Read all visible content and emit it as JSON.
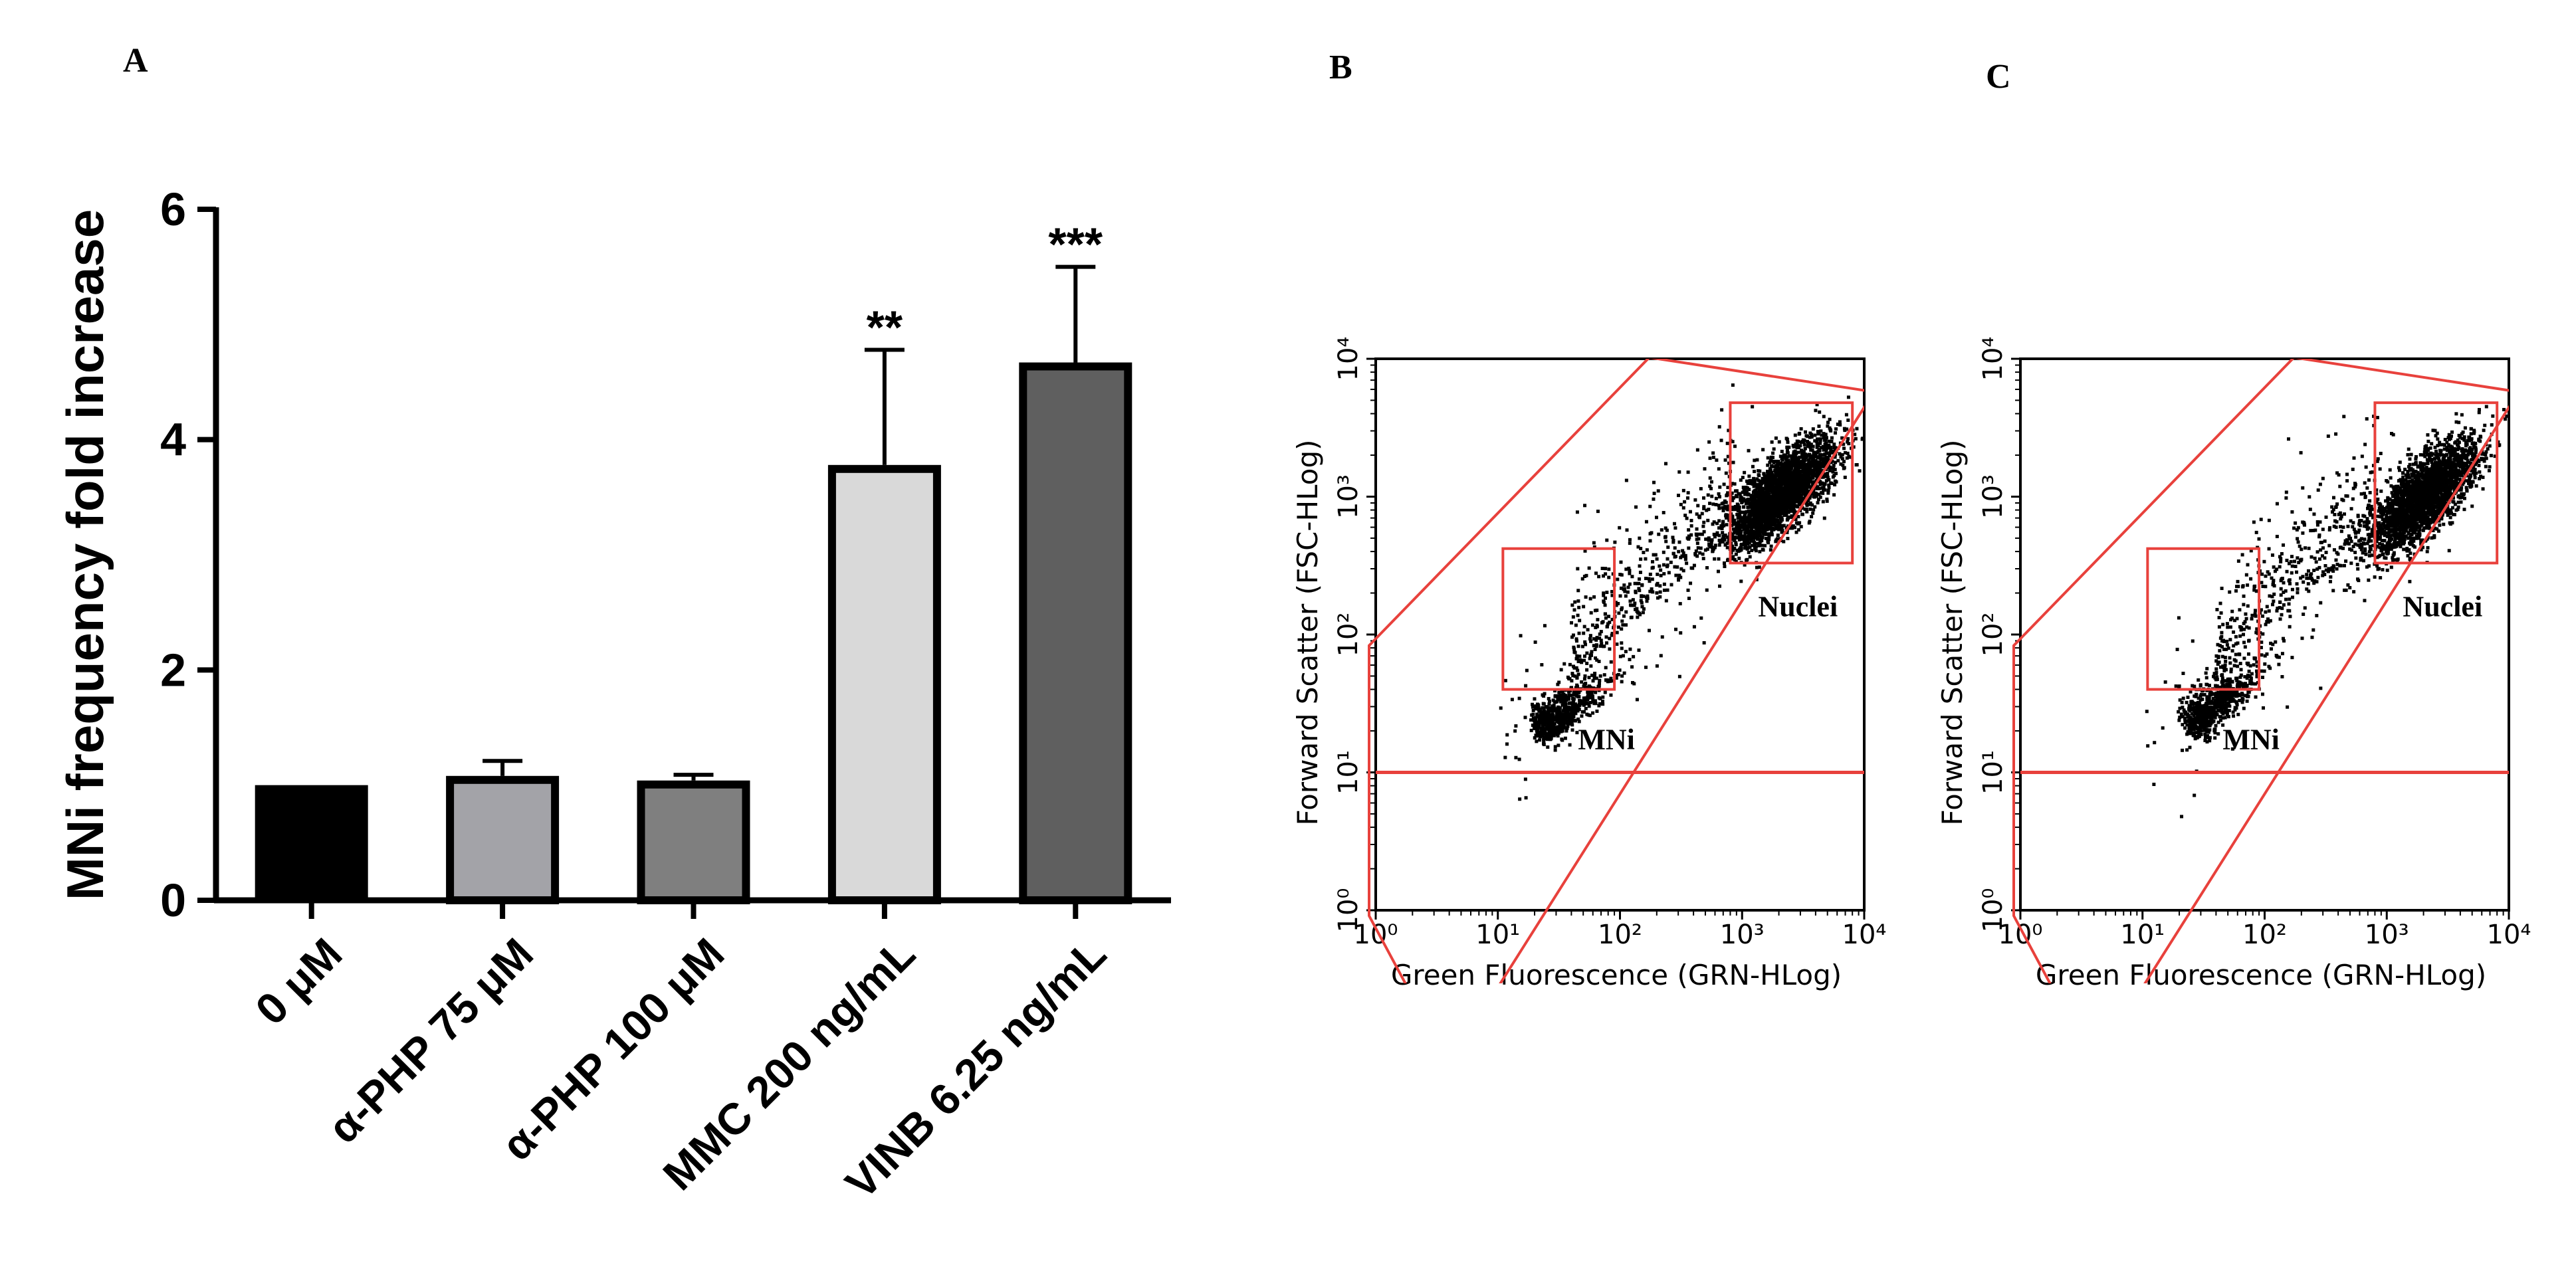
{
  "panels": {
    "A": "A",
    "B": "B",
    "C": "C"
  },
  "chart_data": [
    {
      "type": "bar",
      "panel": "A",
      "title": "",
      "xlabel": "",
      "ylabel": "MNi frequency fold increase",
      "ylim": [
        0,
        6
      ],
      "yticks": [
        "0",
        "2",
        "4",
        "6"
      ],
      "categories": [
        "0 μM",
        "α-PHP 75 μM",
        "α-PHP 100 μM",
        "MMC 200 ng/mL",
        "VINB 6.25 ng/mL"
      ],
      "values": [
        1.0,
        1.08,
        1.04,
        3.78,
        4.67
      ],
      "errors": [
        0.0,
        0.13,
        0.05,
        1.0,
        0.83
      ],
      "significance": [
        "",
        "",
        "",
        "**",
        "***"
      ],
      "colors": [
        "#000000",
        "#a3a3a8",
        "#7f7f7f",
        "#d9d9d9",
        "#5f5f5f"
      ]
    },
    {
      "type": "scatter",
      "panel": "B",
      "xlabel": "Green Fluorescence (GRN-HLog)",
      "ylabel": "Forward Scatter (FSC-HLog)",
      "x_scale": "log",
      "y_scale": "log",
      "xlim": [
        1,
        10000
      ],
      "ylim": [
        1,
        10000
      ],
      "tick_labels": [
        "10⁰",
        "10¹",
        "10²",
        "10³",
        "10⁴"
      ],
      "gates": [
        {
          "name": "MNi",
          "label": "MNi",
          "x": [
            11,
            90
          ],
          "y": [
            40,
            420
          ]
        },
        {
          "name": "Nuclei",
          "label": "Nuclei",
          "x": [
            800,
            8000
          ],
          "y": [
            330,
            4800
          ]
        }
      ],
      "threshold_y": 10,
      "clusters": [
        {
          "name": "nuclei",
          "x_center": 2100,
          "y_center": 1050,
          "count": 2600
        },
        {
          "name": "mni",
          "x_center": 22,
          "y_center": 16,
          "count": 650
        },
        {
          "name": "diagonal",
          "x_range": [
            40,
            900
          ],
          "count": 400
        },
        {
          "name": "sparse",
          "count": 120
        }
      ]
    },
    {
      "type": "scatter",
      "panel": "C",
      "xlabel": "Green Fluorescence (GRN-HLog)",
      "ylabel": "Forward Scatter (FSC-HLog)",
      "x_scale": "log",
      "y_scale": "log",
      "xlim": [
        1,
        10000
      ],
      "ylim": [
        1,
        10000
      ],
      "tick_labels": [
        "10⁰",
        "10¹",
        "10²",
        "10³",
        "10⁴"
      ],
      "gates": [
        {
          "name": "MNi",
          "label": "MNi",
          "x": [
            11,
            90
          ],
          "y": [
            40,
            420
          ]
        },
        {
          "name": "Nuclei",
          "label": "Nuclei",
          "x": [
            800,
            8000
          ],
          "y": [
            330,
            4800
          ]
        }
      ],
      "threshold_y": 10,
      "clusters": [
        {
          "name": "nuclei",
          "x_center": 2000,
          "y_center": 1000,
          "count": 2400
        },
        {
          "name": "mni",
          "x_center": 25,
          "y_center": 18,
          "count": 700
        },
        {
          "name": "diagonal",
          "x_range": [
            40,
            900
          ],
          "count": 380
        },
        {
          "name": "sparse",
          "count": 110
        }
      ]
    }
  ],
  "colors": {
    "gate": "#e8413c",
    "axis": "#000000",
    "dots": "#000000"
  }
}
